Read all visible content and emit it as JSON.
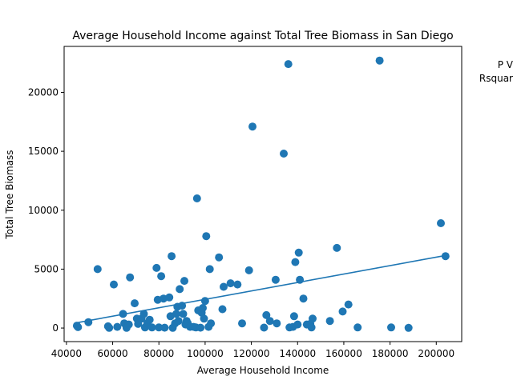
{
  "chart_data": {
    "type": "scatter",
    "title": "Average Household Income against Total Tree Biomass in San Diego",
    "xlabel": "Average Household Income",
    "ylabel": "Total Tree Biomass",
    "xlim": [
      39000,
      211000
    ],
    "ylim": [
      -1150,
      23900
    ],
    "xticks": [
      40000,
      60000,
      80000,
      100000,
      120000,
      140000,
      160000,
      180000,
      200000
    ],
    "xtick_labels": [
      "40000",
      "60000",
      "80000",
      "100000",
      "120000",
      "140000",
      "160000",
      "180000",
      "200000"
    ],
    "yticks": [
      0,
      5000,
      10000,
      15000,
      20000
    ],
    "ytick_labels": [
      "0",
      "5000",
      "10000",
      "15000",
      "20000"
    ],
    "grid": false,
    "annotations": [
      "P V",
      "Rsquar"
    ],
    "marker_color": "#1f77b4",
    "regression_line": {
      "color": "#1f77b4",
      "x": [
        44500,
        203800
      ],
      "y": [
        450,
        6150
      ]
    },
    "points": [
      [
        44500,
        200
      ],
      [
        45000,
        80
      ],
      [
        49500,
        500
      ],
      [
        53500,
        5000
      ],
      [
        58000,
        150
      ],
      [
        58500,
        20
      ],
      [
        60500,
        3700
      ],
      [
        62000,
        100
      ],
      [
        64500,
        1200
      ],
      [
        65000,
        400
      ],
      [
        66000,
        20
      ],
      [
        67000,
        300
      ],
      [
        67500,
        4300
      ],
      [
        69500,
        2100
      ],
      [
        70500,
        800
      ],
      [
        71000,
        350
      ],
      [
        72500,
        800
      ],
      [
        73500,
        1200
      ],
      [
        74000,
        50
      ],
      [
        75000,
        400
      ],
      [
        76000,
        700
      ],
      [
        77000,
        50
      ],
      [
        79000,
        5100
      ],
      [
        79500,
        2400
      ],
      [
        80000,
        50
      ],
      [
        81000,
        4400
      ],
      [
        82000,
        2500
      ],
      [
        82500,
        30
      ],
      [
        84500,
        2600
      ],
      [
        85000,
        1000
      ],
      [
        85500,
        6100
      ],
      [
        86000,
        20
      ],
      [
        87000,
        400
      ],
      [
        87500,
        1200
      ],
      [
        88000,
        1800
      ],
      [
        88500,
        600
      ],
      [
        89000,
        3300
      ],
      [
        90000,
        1900
      ],
      [
        90500,
        1200
      ],
      [
        91000,
        4000
      ],
      [
        91500,
        300
      ],
      [
        92000,
        600
      ],
      [
        92500,
        400
      ],
      [
        93500,
        100
      ],
      [
        95000,
        100
      ],
      [
        96000,
        50
      ],
      [
        96500,
        11000
      ],
      [
        97000,
        1500
      ],
      [
        98000,
        30
      ],
      [
        98500,
        1300
      ],
      [
        99000,
        1700
      ],
      [
        99500,
        800
      ],
      [
        100000,
        2300
      ],
      [
        100500,
        7800
      ],
      [
        101500,
        100
      ],
      [
        102000,
        5000
      ],
      [
        102500,
        400
      ],
      [
        106000,
        6000
      ],
      [
        107500,
        1600
      ],
      [
        108000,
        3500
      ],
      [
        111000,
        3800
      ],
      [
        114000,
        3700
      ],
      [
        116000,
        400
      ],
      [
        119000,
        4900
      ],
      [
        120500,
        17100
      ],
      [
        125500,
        40
      ],
      [
        126500,
        1100
      ],
      [
        128000,
        600
      ],
      [
        130500,
        4100
      ],
      [
        131000,
        400
      ],
      [
        134000,
        14800
      ],
      [
        136000,
        22400
      ],
      [
        136500,
        50
      ],
      [
        138000,
        100
      ],
      [
        138500,
        1000
      ],
      [
        139000,
        5600
      ],
      [
        140500,
        6400
      ],
      [
        140000,
        300
      ],
      [
        141000,
        4100
      ],
      [
        142500,
        2500
      ],
      [
        144000,
        300
      ],
      [
        145500,
        350
      ],
      [
        146000,
        50
      ],
      [
        146500,
        800
      ],
      [
        154000,
        600
      ],
      [
        157000,
        6800
      ],
      [
        159500,
        1400
      ],
      [
        162000,
        2000
      ],
      [
        166000,
        50
      ],
      [
        175500,
        22700
      ],
      [
        180500,
        50
      ],
      [
        188000,
        20
      ],
      [
        202000,
        8900
      ],
      [
        204000,
        6100
      ]
    ]
  }
}
